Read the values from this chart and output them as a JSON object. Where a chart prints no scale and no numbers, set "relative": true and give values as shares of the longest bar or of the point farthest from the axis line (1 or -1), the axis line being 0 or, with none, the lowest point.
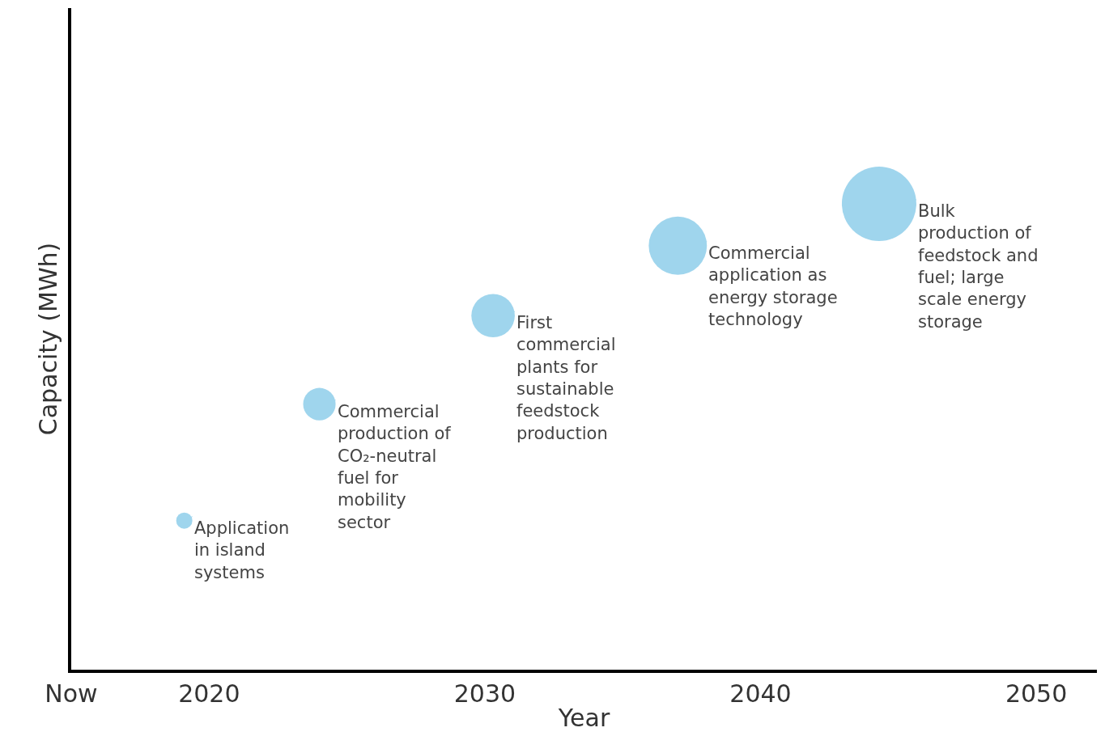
{
  "chart_data": {
    "type": "bubble",
    "xlabel": "Year",
    "ylabel": "Capacity (MWh)",
    "relative": true,
    "x": [
      2019.1,
      2024,
      2030.3,
      2037,
      2044.3
    ],
    "values": [
      0.32,
      0.57,
      0.76,
      0.91,
      1
    ],
    "sizes": [
      0.047,
      0.19,
      0.34,
      0.61,
      1
    ],
    "color": "#9fd5ed",
    "xlim": [
      2015,
      2052.2
    ],
    "xticks": [
      {
        "value": 2015,
        "label": "Now"
      },
      2020,
      2030,
      2040,
      2050
    ],
    "legend": false,
    "annotations": [
      {
        "text": "Application\nin island\nsystems",
        "x": 2019.1,
        "y": 0.32
      },
      {
        "text": "Commercial\nproduction of\nCO₂-neutral\nfuel for\nmobility\nsector",
        "x": 2024,
        "y": 0.57
      },
      {
        "text": "First\ncommercial\nplants for\nsustainable\nfeedstock\nproduction",
        "x": 2030.3,
        "y": 0.76
      },
      {
        "text": "Commercial\napplication as\nenergy storage\ntechnology",
        "x": 2037,
        "y": 0.91
      },
      {
        "text": "Bulk\nproduction of\nfeedstock and\nfuel; large\nscale energy\nstorage",
        "x": 2044.3,
        "y": 1
      }
    ]
  }
}
